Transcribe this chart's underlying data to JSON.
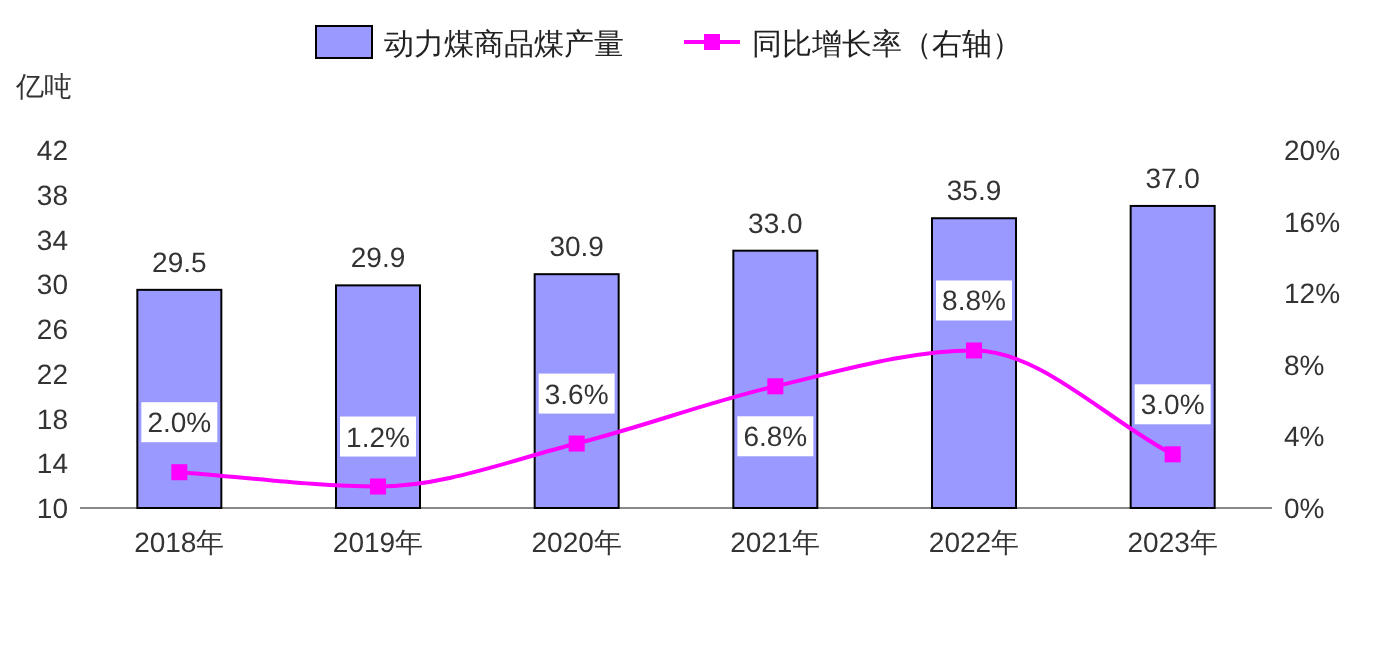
{
  "chart_data": {
    "type": "bar",
    "ylabel": "亿吨",
    "categories": [
      "2018年",
      "2019年",
      "2020年",
      "2021年",
      "2022年",
      "2023年"
    ],
    "series": [
      {
        "name": "动力煤商品煤产量",
        "color": "#9999ff",
        "values": [
          29.5,
          29.9,
          30.9,
          33.0,
          35.9,
          37.0
        ],
        "value_labels": [
          "29.5",
          "29.9",
          "30.9",
          "33.0",
          "35.9",
          "37.0"
        ]
      },
      {
        "name": "同比增长率（右轴）",
        "type": "line",
        "axis": "y2",
        "color": "#ff00ff",
        "values": [
          2.0,
          1.2,
          3.6,
          6.8,
          8.8,
          3.0
        ],
        "value_labels": [
          "2.0%",
          "1.2%",
          "3.6%",
          "6.8%",
          "8.8%",
          "3.0%"
        ]
      }
    ],
    "ylim": [
      10,
      42
    ],
    "yticks": [
      10,
      14,
      18,
      22,
      26,
      30,
      34,
      38,
      42
    ],
    "y2lim": [
      0,
      20
    ],
    "y2ticks": [
      {
        "value": 0,
        "label": "0%"
      },
      {
        "value": 4,
        "label": "4%"
      },
      {
        "value": 8,
        "label": "8%"
      },
      {
        "value": 12,
        "label": "12%"
      },
      {
        "value": 16,
        "label": "16%"
      },
      {
        "value": 20,
        "label": "20%"
      }
    ],
    "marker": "square",
    "legend": "top",
    "grid": false
  }
}
